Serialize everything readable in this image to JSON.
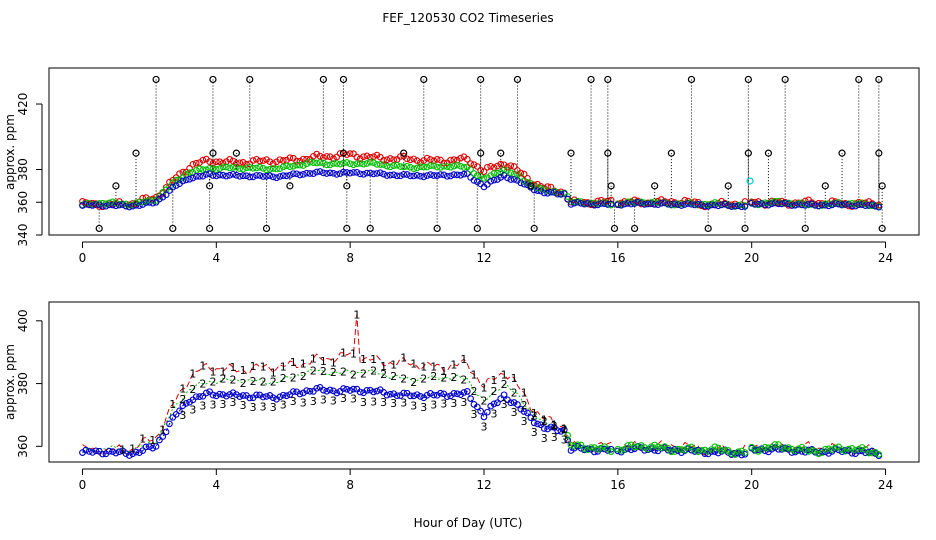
{
  "figure": {
    "title": "FEF_120530  CO2 Timeseries",
    "xlabel": "Hour of Day (UTC)"
  },
  "chart_data": [
    {
      "type": "scatter",
      "panel": "top",
      "ylabel": "approx. ppm",
      "xlim": [
        -1,
        25
      ],
      "ylim": [
        340,
        442
      ],
      "xticks": [
        0,
        4,
        8,
        12,
        16,
        20,
        24
      ],
      "yticks": [
        340,
        360,
        380,
        420
      ],
      "grid": false,
      "colors": {
        "raw": "#000000",
        "s1": "#dd0000",
        "s2": "#00bb00",
        "s3": "#0000cc",
        "s4": "#00cccc"
      },
      "spikes_x": [
        2.2,
        3.9,
        5.0,
        7.2,
        7.8,
        10.2,
        11.9,
        13.0,
        15.2,
        15.7,
        18.2,
        19.9,
        21.0,
        23.2,
        23.8
      ],
      "spike_y": 435,
      "low_x": [
        0.5,
        2.7,
        3.8,
        5.5,
        7.9,
        8.6,
        10.6,
        11.8,
        13.5,
        15.9,
        16.5,
        18.7,
        19.8,
        21.6,
        23.9
      ],
      "low_y": 344,
      "extra_raw": [
        {
          "x": 1.0,
          "y": 370
        },
        {
          "x": 1.6,
          "y": 390
        },
        {
          "x": 3.9,
          "y": 390
        },
        {
          "x": 4.6,
          "y": 390
        },
        {
          "x": 7.8,
          "y": 390
        },
        {
          "x": 9.6,
          "y": 390
        },
        {
          "x": 11.9,
          "y": 390
        },
        {
          "x": 12.5,
          "y": 390
        },
        {
          "x": 13.4,
          "y": 370
        },
        {
          "x": 14.6,
          "y": 390
        },
        {
          "x": 15.7,
          "y": 390
        },
        {
          "x": 17.1,
          "y": 370
        },
        {
          "x": 17.6,
          "y": 390
        },
        {
          "x": 19.3,
          "y": 370
        },
        {
          "x": 19.9,
          "y": 390
        },
        {
          "x": 20.5,
          "y": 390
        },
        {
          "x": 22.2,
          "y": 370
        },
        {
          "x": 22.7,
          "y": 390
        },
        {
          "x": 23.8,
          "y": 390
        },
        {
          "x": 15.8,
          "y": 370
        },
        {
          "x": 23.9,
          "y": 370
        },
        {
          "x": 6.2,
          "y": 370
        },
        {
          "x": 7.9,
          "y": 370
        },
        {
          "x": 3.8,
          "y": 370
        }
      ],
      "extra_s4": [
        {
          "x": 19.95,
          "y": 373
        }
      ]
    },
    {
      "type": "line",
      "panel": "bottom",
      "ylabel": "approx. ppm",
      "xlim": [
        -1,
        25
      ],
      "ylim": [
        355,
        406
      ],
      "xticks": [
        0,
        4,
        8,
        12,
        16,
        20,
        24
      ],
      "yticks": [
        360,
        380,
        400
      ],
      "grid": false,
      "series_markers": [
        "1",
        "2",
        "3"
      ],
      "colors": {
        "s1": "#dd0000",
        "s2": "#00bb00",
        "s3": "#0000cc",
        "circle": "#0000cc"
      },
      "base_points": [
        {
          "x": 0.0,
          "y": 358
        },
        {
          "x": 1.5,
          "y": 358
        },
        {
          "x": 2.2,
          "y": 360
        },
        {
          "x": 2.8,
          "y": 370
        },
        {
          "x": 3.2,
          "y": 375
        },
        {
          "x": 3.8,
          "y": 377
        },
        {
          "x": 4.5,
          "y": 376
        },
        {
          "x": 6.0,
          "y": 376
        },
        {
          "x": 7.0,
          "y": 378
        },
        {
          "x": 8.0,
          "y": 378
        },
        {
          "x": 9.0,
          "y": 377
        },
        {
          "x": 10.5,
          "y": 376
        },
        {
          "x": 11.5,
          "y": 377
        },
        {
          "x": 12.0,
          "y": 370
        },
        {
          "x": 12.6,
          "y": 376
        },
        {
          "x": 13.2,
          "y": 371
        },
        {
          "x": 13.8,
          "y": 366
        },
        {
          "x": 14.4,
          "y": 365
        },
        {
          "x": 14.6,
          "y": 359
        },
        {
          "x": 16.0,
          "y": 359
        },
        {
          "x": 18.0,
          "y": 359
        },
        {
          "x": 18.5,
          "y": 358
        },
        {
          "x": 19.8,
          "y": 358
        },
        {
          "x": 20.0,
          "y": 359
        },
        {
          "x": 23.8,
          "y": 358
        }
      ],
      "offset_s1": [
        {
          "x": 0.0,
          "y": 1
        },
        {
          "x": 1.5,
          "y": 1
        },
        {
          "x": 2.5,
          "y": 4
        },
        {
          "x": 3.5,
          "y": 8
        },
        {
          "x": 7.5,
          "y": 10
        },
        {
          "x": 8.0,
          "y": 11
        },
        {
          "x": 9.0,
          "y": 10
        },
        {
          "x": 11.8,
          "y": 9
        },
        {
          "x": 12.8,
          "y": 8
        },
        {
          "x": 13.5,
          "y": 3
        },
        {
          "x": 14.5,
          "y": 1
        },
        {
          "x": 24.0,
          "y": 1
        }
      ],
      "offset_s2": [
        {
          "x": 0.0,
          "y": 0.5
        },
        {
          "x": 2.5,
          "y": 2
        },
        {
          "x": 3.5,
          "y": 4
        },
        {
          "x": 7.5,
          "y": 6
        },
        {
          "x": 11.5,
          "y": 5
        },
        {
          "x": 13.0,
          "y": 3
        },
        {
          "x": 14.5,
          "y": 0.5
        },
        {
          "x": 24.0,
          "y": 0.5
        }
      ],
      "peak": {
        "x": 8.2,
        "y": 402
      },
      "hour_gaps": [
        15.8,
        19.8
      ]
    }
  ]
}
